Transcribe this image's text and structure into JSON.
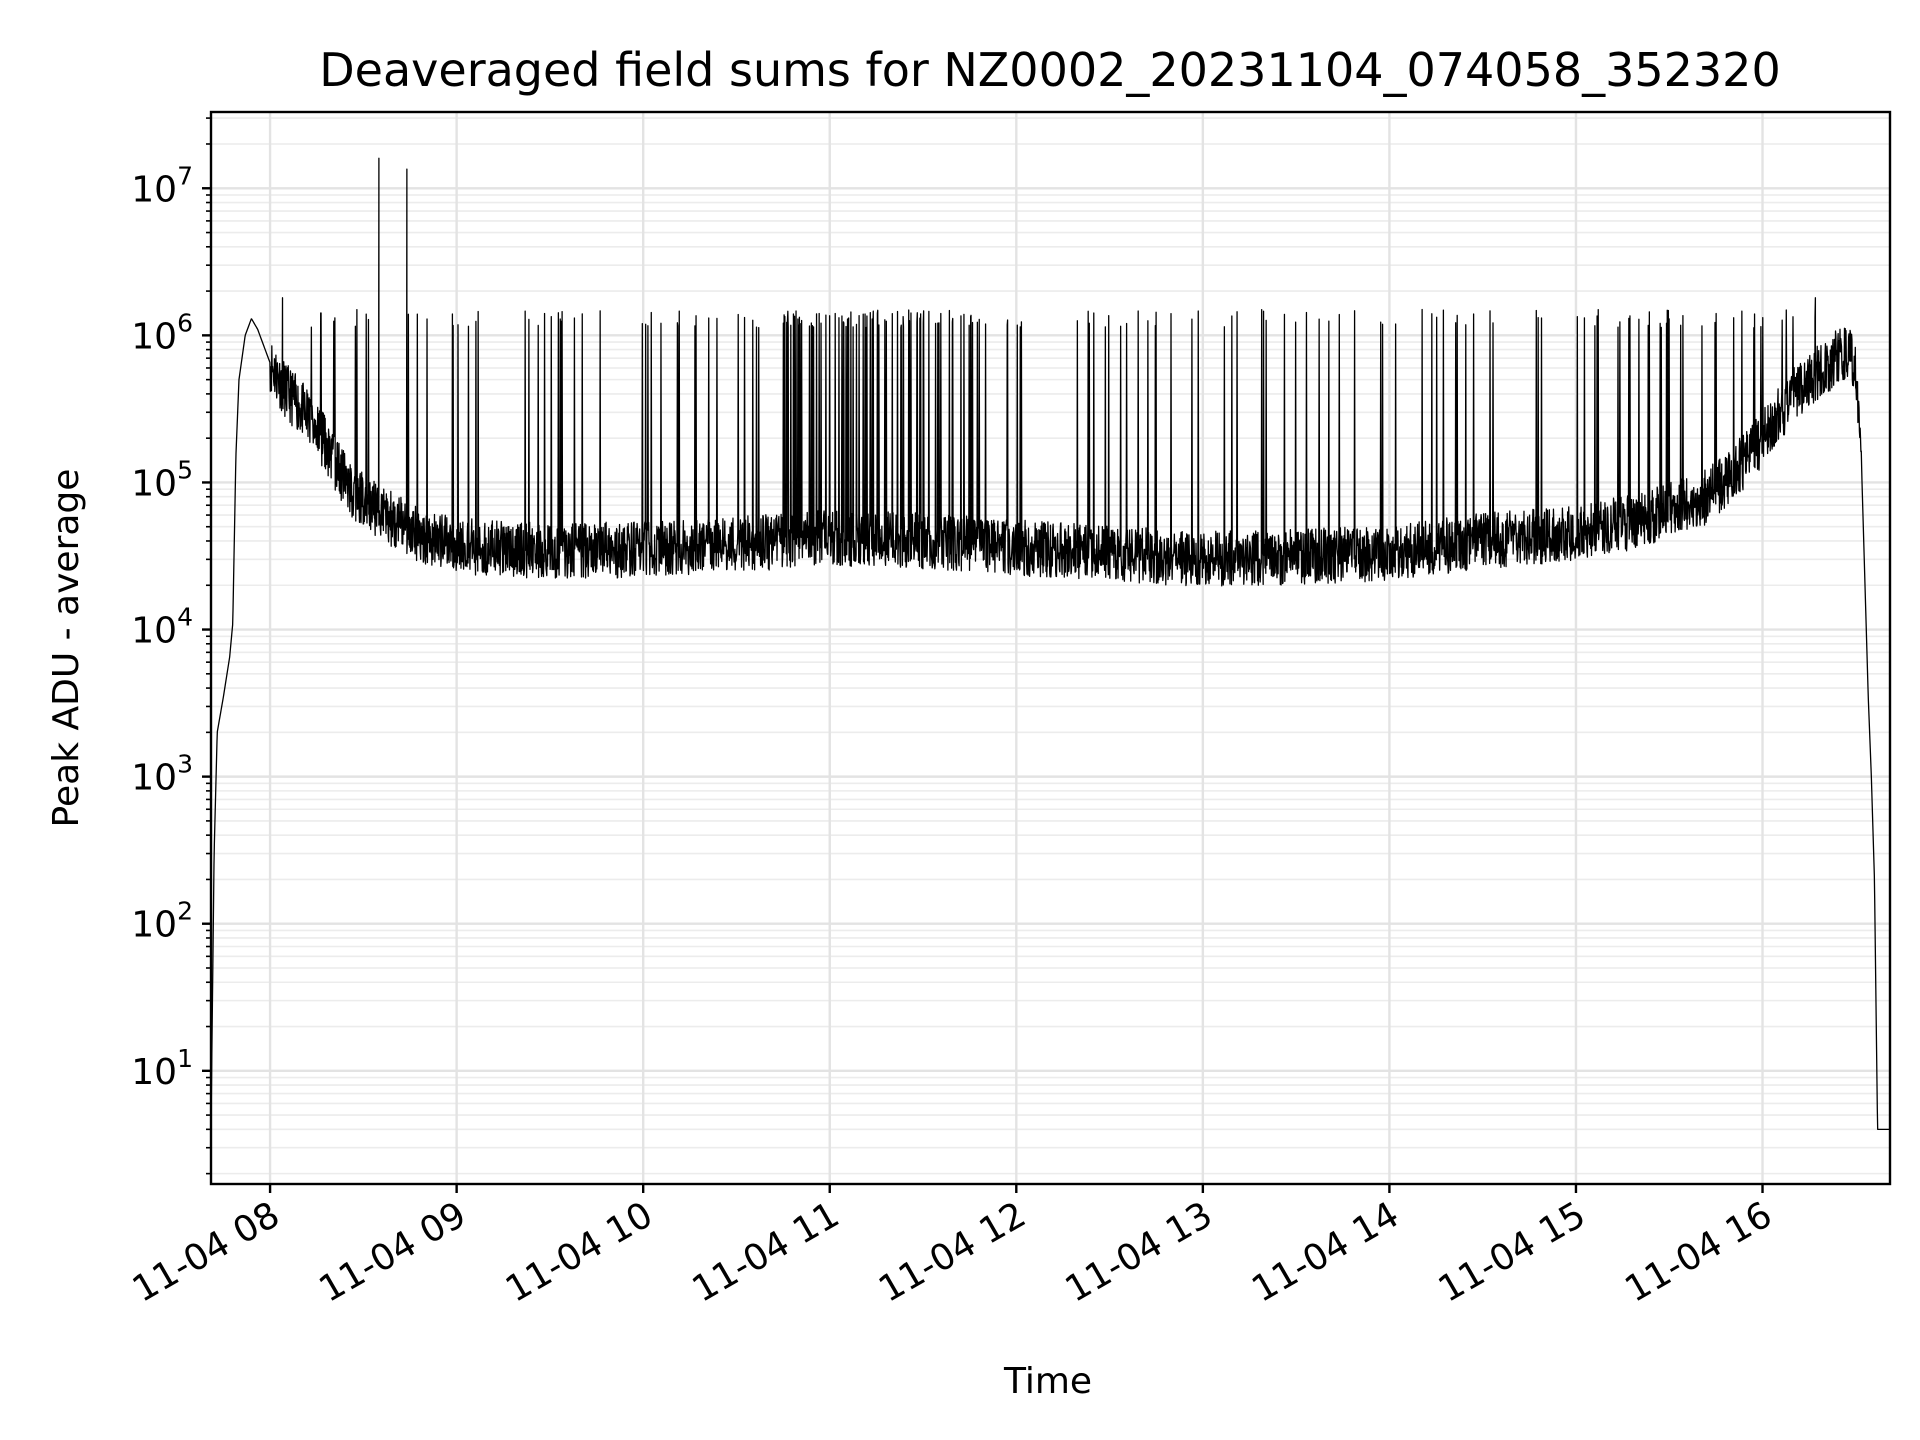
{
  "chart_data": {
    "type": "line",
    "title": "Deaveraged field sums for NZ0002_20231104_074058_352320",
    "xlabel": "Time",
    "ylabel": "Peak ADU - average",
    "yscale": "log",
    "ylim": [
      1.7,
      33000000
    ],
    "xlim": [
      "2023-11-04 07:41",
      "2023-11-04 16:41"
    ],
    "grid": true,
    "x_ticks": [
      {
        "label": "11-04 08",
        "t": "2023-11-04 08:00"
      },
      {
        "label": "11-04 09",
        "t": "2023-11-04 09:00"
      },
      {
        "label": "11-04 10",
        "t": "2023-11-04 10:00"
      },
      {
        "label": "11-04 11",
        "t": "2023-11-04 11:00"
      },
      {
        "label": "11-04 12",
        "t": "2023-11-04 12:00"
      },
      {
        "label": "11-04 13",
        "t": "2023-11-04 13:00"
      },
      {
        "label": "11-04 14",
        "t": "2023-11-04 14:00"
      },
      {
        "label": "11-04 15",
        "t": "2023-11-04 15:00"
      },
      {
        "label": "11-04 16",
        "t": "2023-11-04 16:00"
      }
    ],
    "y_ticks": [
      {
        "base": "10",
        "exp": "1",
        "value": 10
      },
      {
        "base": "10",
        "exp": "2",
        "value": 100
      },
      {
        "base": "10",
        "exp": "3",
        "value": 1000
      },
      {
        "base": "10",
        "exp": "4",
        "value": 10000
      },
      {
        "base": "10",
        "exp": "5",
        "value": 100000
      },
      {
        "base": "10",
        "exp": "6",
        "value": 1000000
      },
      {
        "base": "10",
        "exp": "7",
        "value": 10000000
      }
    ],
    "series": [
      {
        "color": "#000000",
        "points": [
          [
            "2023-11-04 07:41",
            4
          ],
          [
            "2023-11-04 07:42",
            300
          ],
          [
            "2023-11-04 07:43",
            2000
          ],
          [
            "2023-11-04 07:45",
            3500
          ],
          [
            "2023-11-04 07:47",
            6500
          ],
          [
            "2023-11-04 07:48",
            11000
          ],
          [
            "2023-11-04 07:49",
            150000
          ],
          [
            "2023-11-04 07:50",
            500000
          ],
          [
            "2023-11-04 07:52",
            1000000
          ],
          [
            "2023-11-04 07:54",
            1300000
          ],
          [
            "2023-11-04 07:56",
            1100000
          ],
          [
            "2023-11-04 08:00",
            650000
          ],
          [
            "2023-11-04 08:05",
            420000
          ],
          [
            "2023-11-04 08:10",
            320000
          ],
          [
            "2023-11-04 08:15",
            230000
          ],
          [
            "2023-11-04 08:20",
            150000
          ],
          [
            "2023-11-04 08:25",
            95000
          ],
          [
            "2023-11-04 08:30",
            75000
          ],
          [
            "2023-11-04 08:40",
            55000
          ],
          [
            "2023-11-04 08:50",
            42000
          ],
          [
            "2023-11-04 09:00",
            37000
          ],
          [
            "2023-11-04 09:30",
            34000
          ],
          [
            "2023-11-04 10:00",
            35000
          ],
          [
            "2023-11-04 10:30",
            38000
          ],
          [
            "2023-11-04 11:00",
            42000
          ],
          [
            "2023-11-04 11:30",
            40000
          ],
          [
            "2023-11-04 12:00",
            36000
          ],
          [
            "2023-11-04 12:30",
            33000
          ],
          [
            "2023-11-04 13:00",
            30000
          ],
          [
            "2023-11-04 13:30",
            31000
          ],
          [
            "2023-11-04 14:00",
            33000
          ],
          [
            "2023-11-04 14:30",
            40000
          ],
          [
            "2023-11-04 15:00",
            45000
          ],
          [
            "2023-11-04 15:20",
            55000
          ],
          [
            "2023-11-04 15:40",
            75000
          ],
          [
            "2023-11-04 15:50",
            110000
          ],
          [
            "2023-11-04 16:00",
            200000
          ],
          [
            "2023-11-04 16:10",
            400000
          ],
          [
            "2023-11-04 16:20",
            600000
          ],
          [
            "2023-11-04 16:27",
            800000
          ],
          [
            "2023-11-04 16:30",
            650000
          ],
          [
            "2023-11-04 16:32",
            100000
          ],
          [
            "2023-11-04 16:34",
            3500
          ],
          [
            "2023-11-04 16:35",
            1000
          ],
          [
            "2023-11-04 16:36",
            200
          ],
          [
            "2023-11-04 16:37",
            4
          ],
          [
            "2023-11-04 16:41",
            4
          ]
        ],
        "spikes": [
          [
            "2023-11-04 08:35",
            16000000
          ],
          [
            "2023-11-04 08:44",
            13500000
          ],
          [
            "2023-11-04 08:04",
            1800000
          ],
          [
            "2023-11-04 16:17",
            1800000
          ]
        ],
        "spike_band_max": 1500000
      }
    ]
  }
}
